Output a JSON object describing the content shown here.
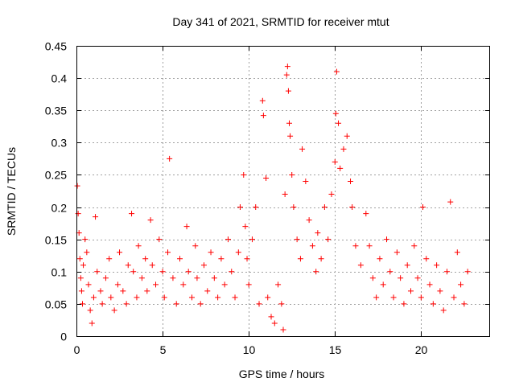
{
  "chart_data": {
    "type": "scatter",
    "title": "Day 341 of 2021, SRMTID for receiver mtut",
    "xlabel": "GPS time / hours",
    "ylabel": "SRMTID / TECUs",
    "xlim": [
      0,
      24
    ],
    "ylim": [
      0,
      0.45
    ],
    "xticks": [
      0,
      5,
      10,
      15,
      20
    ],
    "yticks": [
      0,
      0.05,
      0.1,
      0.15,
      0.2,
      0.25,
      0.3,
      0.35,
      0.4,
      0.45
    ],
    "xtick_labels": [
      "0",
      "5",
      "10",
      "15",
      "20"
    ],
    "ytick_labels": [
      "0",
      "0.05",
      "0.1",
      "0.15",
      "0.2",
      "0.25",
      "0.3",
      "0.35",
      "0.4",
      "0.45"
    ],
    "grid": true,
    "marker": "+",
    "color": "#ff0000",
    "series": [
      {
        "name": "SRMTID",
        "points": [
          [
            0.05,
            0.233
          ],
          [
            0.1,
            0.19
          ],
          [
            0.15,
            0.16
          ],
          [
            0.2,
            0.12
          ],
          [
            0.25,
            0.09
          ],
          [
            0.3,
            0.07
          ],
          [
            0.35,
            0.05
          ],
          [
            0.4,
            0.11
          ],
          [
            0.5,
            0.15
          ],
          [
            0.6,
            0.13
          ],
          [
            0.7,
            0.08
          ],
          [
            0.8,
            0.04
          ],
          [
            0.9,
            0.02
          ],
          [
            1.0,
            0.06
          ],
          [
            1.1,
            0.185
          ],
          [
            1.2,
            0.1
          ],
          [
            1.4,
            0.07
          ],
          [
            1.5,
            0.05
          ],
          [
            1.7,
            0.09
          ],
          [
            1.9,
            0.12
          ],
          [
            2.0,
            0.06
          ],
          [
            2.2,
            0.04
          ],
          [
            2.4,
            0.08
          ],
          [
            2.5,
            0.13
          ],
          [
            2.7,
            0.07
          ],
          [
            2.9,
            0.05
          ],
          [
            3.0,
            0.11
          ],
          [
            3.2,
            0.19
          ],
          [
            3.3,
            0.1
          ],
          [
            3.5,
            0.06
          ],
          [
            3.6,
            0.14
          ],
          [
            3.8,
            0.09
          ],
          [
            4.0,
            0.12
          ],
          [
            4.1,
            0.07
          ],
          [
            4.3,
            0.18
          ],
          [
            4.4,
            0.11
          ],
          [
            4.6,
            0.08
          ],
          [
            4.8,
            0.15
          ],
          [
            5.0,
            0.1
          ],
          [
            5.1,
            0.06
          ],
          [
            5.3,
            0.13
          ],
          [
            5.4,
            0.275
          ],
          [
            5.6,
            0.09
          ],
          [
            5.8,
            0.05
          ],
          [
            6.0,
            0.12
          ],
          [
            6.2,
            0.08
          ],
          [
            6.4,
            0.17
          ],
          [
            6.5,
            0.1
          ],
          [
            6.7,
            0.06
          ],
          [
            6.9,
            0.14
          ],
          [
            7.0,
            0.09
          ],
          [
            7.2,
            0.05
          ],
          [
            7.4,
            0.11
          ],
          [
            7.6,
            0.07
          ],
          [
            7.8,
            0.13
          ],
          [
            8.0,
            0.09
          ],
          [
            8.2,
            0.06
          ],
          [
            8.4,
            0.12
          ],
          [
            8.6,
            0.08
          ],
          [
            8.8,
            0.15
          ],
          [
            9.0,
            0.1
          ],
          [
            9.2,
            0.06
          ],
          [
            9.4,
            0.13
          ],
          [
            9.5,
            0.2
          ],
          [
            9.7,
            0.25
          ],
          [
            9.8,
            0.17
          ],
          [
            9.9,
            0.12
          ],
          [
            10.0,
            0.08
          ],
          [
            10.2,
            0.15
          ],
          [
            10.4,
            0.2
          ],
          [
            10.6,
            0.05
          ],
          [
            10.8,
            0.365
          ],
          [
            10.85,
            0.342
          ],
          [
            11.0,
            0.245
          ],
          [
            11.1,
            0.06
          ],
          [
            11.3,
            0.03
          ],
          [
            11.5,
            0.02
          ],
          [
            11.7,
            0.08
          ],
          [
            11.9,
            0.05
          ],
          [
            12.0,
            0.01
          ],
          [
            12.1,
            0.22
          ],
          [
            12.2,
            0.405
          ],
          [
            12.25,
            0.418
          ],
          [
            12.3,
            0.38
          ],
          [
            12.35,
            0.33
          ],
          [
            12.4,
            0.31
          ],
          [
            12.5,
            0.25
          ],
          [
            12.6,
            0.2
          ],
          [
            12.8,
            0.15
          ],
          [
            13.0,
            0.12
          ],
          [
            13.1,
            0.29
          ],
          [
            13.3,
            0.24
          ],
          [
            13.5,
            0.18
          ],
          [
            13.7,
            0.14
          ],
          [
            13.9,
            0.1
          ],
          [
            14.0,
            0.16
          ],
          [
            14.2,
            0.12
          ],
          [
            14.4,
            0.2
          ],
          [
            14.6,
            0.15
          ],
          [
            14.8,
            0.22
          ],
          [
            15.0,
            0.27
          ],
          [
            15.05,
            0.345
          ],
          [
            15.1,
            0.41
          ],
          [
            15.2,
            0.33
          ],
          [
            15.3,
            0.26
          ],
          [
            15.5,
            0.29
          ],
          [
            15.7,
            0.31
          ],
          [
            15.9,
            0.24
          ],
          [
            16.0,
            0.2
          ],
          [
            16.2,
            0.14
          ],
          [
            16.5,
            0.11
          ],
          [
            16.8,
            0.19
          ],
          [
            17.0,
            0.14
          ],
          [
            17.2,
            0.09
          ],
          [
            17.4,
            0.06
          ],
          [
            17.6,
            0.12
          ],
          [
            17.8,
            0.08
          ],
          [
            18.0,
            0.15
          ],
          [
            18.2,
            0.1
          ],
          [
            18.4,
            0.06
          ],
          [
            18.6,
            0.13
          ],
          [
            18.8,
            0.09
          ],
          [
            19.0,
            0.05
          ],
          [
            19.2,
            0.11
          ],
          [
            19.4,
            0.07
          ],
          [
            19.6,
            0.14
          ],
          [
            19.8,
            0.09
          ],
          [
            20.0,
            0.06
          ],
          [
            20.1,
            0.2
          ],
          [
            20.3,
            0.12
          ],
          [
            20.5,
            0.08
          ],
          [
            20.7,
            0.05
          ],
          [
            20.9,
            0.11
          ],
          [
            21.1,
            0.07
          ],
          [
            21.3,
            0.04
          ],
          [
            21.5,
            0.1
          ],
          [
            21.7,
            0.208
          ],
          [
            21.9,
            0.06
          ],
          [
            22.1,
            0.13
          ],
          [
            22.3,
            0.08
          ],
          [
            22.5,
            0.05
          ],
          [
            22.7,
            0.1
          ]
        ]
      }
    ]
  }
}
